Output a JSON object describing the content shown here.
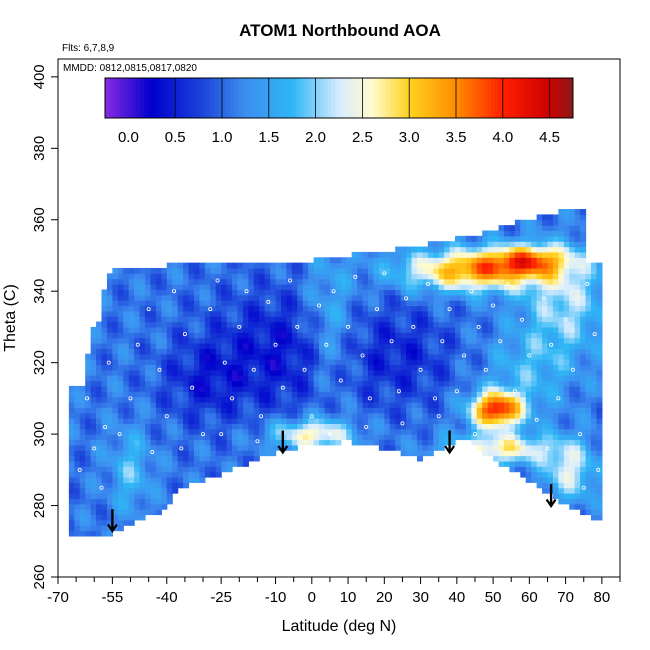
{
  "chart_data": {
    "type": "heatmap",
    "title": "ATOM1 Northbound AOA",
    "notes": {
      "flights": "Flts: 6,7,8,9",
      "dates": "MMDD: 0812,0815,0817,0820"
    },
    "xlabel": "Latitude (deg N)",
    "ylabel": "Theta (C)",
    "xlim": [
      -70,
      85
    ],
    "ylim": [
      260,
      405
    ],
    "x_ticks": [
      -70,
      -55,
      -40,
      -25,
      -10,
      0,
      10,
      20,
      30,
      40,
      50,
      60,
      70,
      80
    ],
    "x_tick_labels": [
      "-70",
      "-55",
      "-40",
      "-25",
      "-10",
      "0",
      "10",
      "20",
      "30",
      "40",
      "50",
      "60",
      "70",
      "80"
    ],
    "x_minor_ticks": [
      -65,
      -60,
      -50,
      -45,
      -35,
      -30,
      -20,
      -15,
      -5,
      5,
      15,
      25,
      35,
      45,
      55,
      65,
      75,
      85
    ],
    "y_ticks": [
      260,
      280,
      300,
      320,
      340,
      360,
      380,
      400
    ],
    "y_tick_labels": [
      "260",
      "280",
      "300",
      "320",
      "340",
      "360",
      "380",
      "400"
    ],
    "colorbar": {
      "range": [
        -0.25,
        4.75
      ],
      "ticks": [
        0.0,
        0.5,
        1.0,
        1.5,
        2.0,
        2.5,
        3.0,
        3.5,
        4.0,
        4.5
      ],
      "tick_labels": [
        "0.0",
        "0.5",
        "1.0",
        "1.5",
        "2.0",
        "2.5",
        "3.0",
        "3.5",
        "4.0",
        "4.5"
      ],
      "boundaries": [
        0.5,
        1.0,
        1.5,
        2.0,
        2.5,
        3.0,
        3.5,
        4.0,
        4.5
      ],
      "stops": [
        {
          "v": -0.25,
          "color": "#8a2be2"
        },
        {
          "v": 0.25,
          "color": "#0000cd"
        },
        {
          "v": 0.75,
          "color": "#1a3fd8"
        },
        {
          "v": 1.25,
          "color": "#3d8ef0"
        },
        {
          "v": 1.75,
          "color": "#2fb6f5"
        },
        {
          "v": 2.25,
          "color": "#d7ecff"
        },
        {
          "v": 2.6,
          "color": "#fffbd0"
        },
        {
          "v": 3.0,
          "color": "#ffd21f"
        },
        {
          "v": 3.5,
          "color": "#ff8c00"
        },
        {
          "v": 4.0,
          "color": "#ff2000"
        },
        {
          "v": 4.5,
          "color": "#cc0000"
        },
        {
          "v": 4.75,
          "color": "#8b1a1a"
        }
      ]
    },
    "domain": {
      "x_range": [
        -67,
        80
      ],
      "upper_theta": [
        [
          -67,
          312
        ],
        [
          -63,
          313
        ],
        [
          -61,
          328
        ],
        [
          -59,
          330
        ],
        [
          -57,
          342
        ],
        [
          -55,
          345
        ],
        [
          -45,
          346
        ],
        [
          -35,
          347
        ],
        [
          -15,
          348
        ],
        [
          0,
          348
        ],
        [
          15,
          350
        ],
        [
          30,
          352
        ],
        [
          45,
          355
        ],
        [
          55,
          358
        ],
        [
          65,
          361
        ],
        [
          72,
          362
        ],
        [
          75,
          362
        ],
        [
          76,
          348
        ],
        [
          80,
          347
        ]
      ],
      "lower_theta": [
        [
          -67,
          272
        ],
        [
          -55,
          272
        ],
        [
          -50,
          275
        ],
        [
          -42,
          278
        ],
        [
          -36,
          285
        ],
        [
          -30,
          287
        ],
        [
          -25,
          289
        ],
        [
          -20,
          291
        ],
        [
          -10,
          295
        ],
        [
          0,
          297
        ],
        [
          10,
          298
        ],
        [
          20,
          296
        ],
        [
          30,
          293
        ],
        [
          38,
          297
        ],
        [
          42,
          299
        ],
        [
          50,
          293
        ],
        [
          60,
          287
        ],
        [
          66,
          283
        ],
        [
          72,
          279
        ],
        [
          78,
          276
        ],
        [
          80,
          276
        ]
      ]
    },
    "field_background": 1.1,
    "field_features": [
      {
        "name": "upper-stratosphere-band",
        "x": 45,
        "y": 346,
        "sx": 14,
        "sy": 4,
        "value": 2.3
      },
      {
        "name": "upper-orange-streak",
        "x": 60,
        "y": 349,
        "sx": 8,
        "sy": 3,
        "value": 1.7
      },
      {
        "name": "north-upper-light",
        "x": 70,
        "y": 337,
        "sx": 8,
        "sy": 10,
        "value": 1.0
      },
      {
        "name": "tropics-dark-core-1",
        "x": -8,
        "y": 323,
        "sx": 14,
        "sy": 12,
        "value": -0.7
      },
      {
        "name": "tropics-dark-core-2",
        "x": 25,
        "y": 322,
        "sx": 10,
        "sy": 10,
        "value": -0.5
      },
      {
        "name": "sh-dark-core",
        "x": -30,
        "y": 315,
        "sx": 8,
        "sy": 8,
        "value": -0.5
      },
      {
        "name": "tropical-tape-recorder-light",
        "x": 5,
        "y": 330,
        "sx": 5,
        "sy": 14,
        "value": 0.7
      },
      {
        "name": "subtropical-yellow-band",
        "x": 0,
        "y": 300,
        "sx": 8,
        "sy": 3,
        "value": 1.6
      },
      {
        "name": "nh-red-blob",
        "x": 51,
        "y": 307,
        "sx": 5,
        "sy": 3.5,
        "value": 3.0
      },
      {
        "name": "nh-orange-streak",
        "x": 52,
        "y": 296,
        "sx": 10,
        "sy": 3,
        "value": 1.6
      },
      {
        "name": "high-lat-yellow",
        "x": 71,
        "y": 290,
        "sx": 5,
        "sy": 6,
        "value": 1.2
      },
      {
        "name": "sh-low-light",
        "x": -50,
        "y": 290,
        "sx": 4,
        "sy": 8,
        "value": 0.7
      },
      {
        "name": "nh-light-band",
        "x": 60,
        "y": 318,
        "sx": 8,
        "sy": 8,
        "value": 0.6
      }
    ],
    "markers": {
      "description": "sample locations",
      "points": [
        [
          -62,
          310
        ],
        [
          -60,
          296
        ],
        [
          -58,
          285
        ],
        [
          -57,
          302
        ],
        [
          -53,
          300
        ],
        [
          -50,
          310
        ],
        [
          -48,
          325
        ],
        [
          -45,
          335
        ],
        [
          -42,
          318
        ],
        [
          -40,
          305
        ],
        [
          -38,
          340
        ],
        [
          -35,
          328
        ],
        [
          -33,
          313
        ],
        [
          -30,
          300
        ],
        [
          -28,
          335
        ],
        [
          -26,
          343
        ],
        [
          -24,
          320
        ],
        [
          -22,
          310
        ],
        [
          -20,
          330
        ],
        [
          -18,
          340
        ],
        [
          -16,
          318
        ],
        [
          -14,
          305
        ],
        [
          -12,
          337
        ],
        [
          -10,
          325
        ],
        [
          -8,
          313
        ],
        [
          -6,
          343
        ],
        [
          -4,
          330
        ],
        [
          -2,
          318
        ],
        [
          0,
          305
        ],
        [
          2,
          336
        ],
        [
          4,
          325
        ],
        [
          6,
          340
        ],
        [
          8,
          315
        ],
        [
          10,
          330
        ],
        [
          12,
          344
        ],
        [
          14,
          322
        ],
        [
          16,
          310
        ],
        [
          18,
          335
        ],
        [
          20,
          345
        ],
        [
          22,
          326
        ],
        [
          24,
          312
        ],
        [
          26,
          338
        ],
        [
          28,
          330
        ],
        [
          30,
          318
        ],
        [
          32,
          342
        ],
        [
          34,
          310
        ],
        [
          36,
          326
        ],
        [
          38,
          335
        ],
        [
          40,
          312
        ],
        [
          42,
          322
        ],
        [
          44,
          340
        ],
        [
          46,
          330
        ],
        [
          48,
          318
        ],
        [
          50,
          336
        ],
        [
          52,
          326
        ],
        [
          54,
          342
        ],
        [
          56,
          312
        ],
        [
          58,
          332
        ],
        [
          60,
          322
        ],
        [
          62,
          304
        ],
        [
          64,
          338
        ],
        [
          66,
          325
        ],
        [
          68,
          310
        ],
        [
          70,
          332
        ],
        [
          72,
          318
        ],
        [
          74,
          300
        ],
        [
          76,
          342
        ],
        [
          78,
          328
        ],
        [
          79,
          290
        ],
        [
          -64,
          290
        ],
        [
          -56,
          320
        ],
        [
          -44,
          295
        ],
        [
          -36,
          296
        ],
        [
          -25,
          300
        ],
        [
          -15,
          298
        ],
        [
          5,
          300
        ],
        [
          15,
          302
        ],
        [
          25,
          303
        ],
        [
          35,
          305
        ],
        [
          45,
          300
        ],
        [
          55,
          300
        ],
        [
          65,
          296
        ],
        [
          75,
          285
        ]
      ]
    },
    "arrows": [
      {
        "x": -55,
        "y_start": 279,
        "y_end": 273
      },
      {
        "x": -8,
        "y_start": 301,
        "y_end": 295
      },
      {
        "x": 38,
        "y_start": 301,
        "y_end": 295
      },
      {
        "x": 66,
        "y_start": 286,
        "y_end": 280
      }
    ]
  }
}
